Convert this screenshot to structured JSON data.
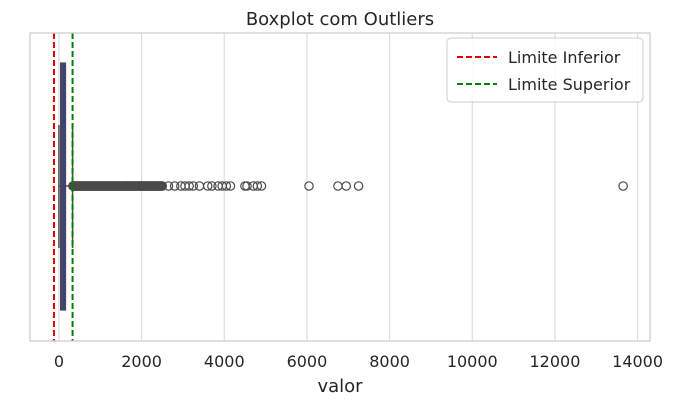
{
  "chart_data": {
    "type": "boxplot",
    "title": "Boxplot com Outliers",
    "xlabel": "valor",
    "ylabel": "",
    "xlim": [
      -700,
      14300
    ],
    "xticks": [
      0,
      2000,
      4000,
      6000,
      8000,
      10000,
      12000,
      14000
    ],
    "grid": true,
    "orientation": "horizontal",
    "box": {
      "min": 0,
      "q1": 40,
      "median": 85,
      "q3": 160,
      "upper_whisker": 330,
      "color": "#3c3ca0"
    },
    "outliers_dense_range": [
      340,
      2500
    ],
    "outliers": [
      340,
      380,
      430,
      500,
      580,
      660,
      750,
      850,
      960,
      1080,
      1200,
      1330,
      1470,
      1620,
      1780,
      1950,
      2150,
      2350,
      2500,
      2650,
      2800,
      2950,
      3050,
      3150,
      3250,
      3400,
      3600,
      3700,
      3850,
      3950,
      4050,
      4150,
      4500,
      4550,
      4700,
      4800,
      4900,
      6050,
      6750,
      6950,
      7250,
      13650
    ],
    "reference_lines": [
      {
        "name": "Limite Inferior",
        "value": -120,
        "color": "#e00000"
      },
      {
        "name": "Limite Superior",
        "value": 330,
        "color": "#008000"
      }
    ],
    "legend_position": "top-right"
  }
}
